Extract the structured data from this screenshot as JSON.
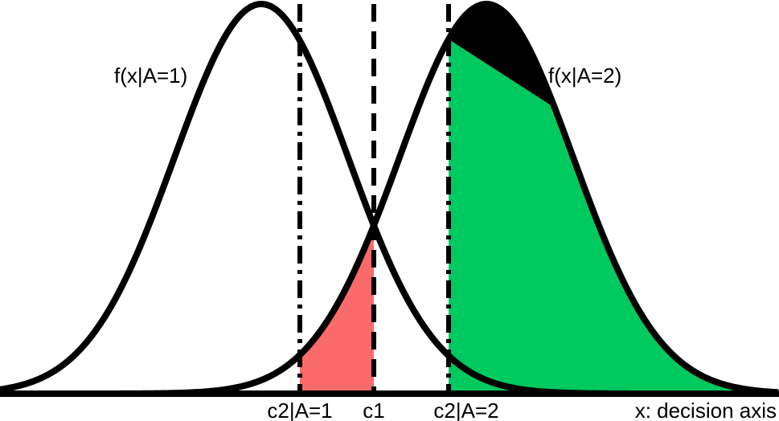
{
  "diagram": {
    "curve_labels": {
      "left": "f(x|A=1)",
      "right": "f(x|A=2)"
    },
    "axis_labels": {
      "c2_a1": "c2|A=1",
      "c1": "c1",
      "c2_a2": "c2|A=2",
      "x_axis": "x: decision axis"
    },
    "colors": {
      "outline": "#000000",
      "red_region": "#f96b6b",
      "green_region": "#00c95f",
      "black_region": "#000000",
      "background": "#ffffff"
    }
  }
}
